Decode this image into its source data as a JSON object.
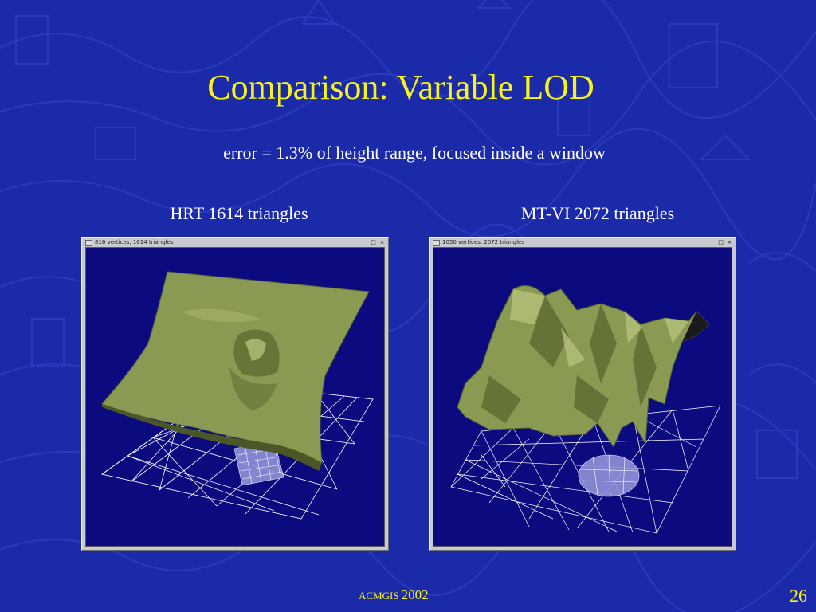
{
  "slide": {
    "title": "Comparison: Variable LOD",
    "subtitle": "error = 1.3% of height range, focused inside a window",
    "footer_org": "ACMGIS",
    "footer_year": "2002",
    "page_number": "26"
  },
  "panels": [
    {
      "caption": "HRT 1614 triangles",
      "window_title": "816 vertices, 1614 triangles",
      "buttons": [
        "_",
        "□",
        "×"
      ]
    },
    {
      "caption": "MT-VI 2072 triangles",
      "window_title": "1050 vertices, 2072 triangles",
      "buttons": [
        "_",
        "□",
        "×"
      ]
    }
  ],
  "colors": {
    "background": "#1a2aa8",
    "title": "#f6f21a",
    "text": "#ffffff",
    "viewport": "#0b0b7f",
    "terrain": "#8a9a52",
    "mesh": "#ffffff"
  }
}
